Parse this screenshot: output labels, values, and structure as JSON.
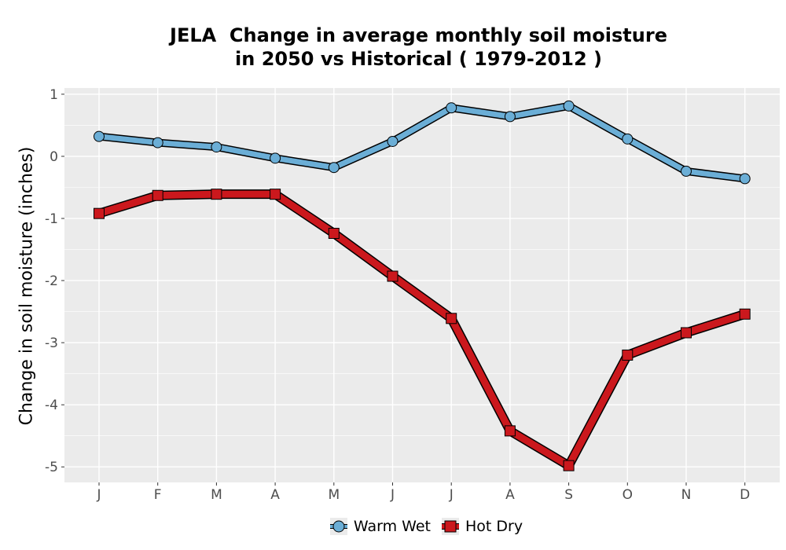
{
  "chart_data": {
    "type": "line",
    "title_line1": "JELA  Change in average monthly soil moisture",
    "title_line2": "in 2050 vs Historical ( 1979-2012 )",
    "xlabel": "",
    "ylabel": "Change in soil moisture (inches)",
    "categories": [
      "J",
      "F",
      "M",
      "A",
      "M",
      "J",
      "J",
      "A",
      "S",
      "O",
      "N",
      "D"
    ],
    "ylim": [
      -5.25,
      1.1
    ],
    "yticks": [
      1,
      0,
      -1,
      -2,
      -3,
      -4,
      -5
    ],
    "ytick_labels": [
      "1",
      "0",
      "-1",
      "-2",
      "-3",
      "-4",
      "-5"
    ],
    "grid": true,
    "legend_position": "bottom",
    "series": [
      {
        "name": "Warm Wet",
        "color": "#6baed6",
        "marker": "circle",
        "values": [
          0.32,
          0.22,
          0.15,
          -0.03,
          -0.18,
          0.24,
          0.78,
          0.64,
          0.81,
          0.28,
          -0.24,
          -0.36
        ]
      },
      {
        "name": "Hot Dry",
        "color": "#cb181d",
        "marker": "square",
        "values": [
          -0.92,
          -0.63,
          -0.61,
          -0.61,
          -1.24,
          -1.93,
          -2.61,
          -4.42,
          -4.98,
          -3.2,
          -2.84,
          -2.54
        ]
      }
    ]
  }
}
